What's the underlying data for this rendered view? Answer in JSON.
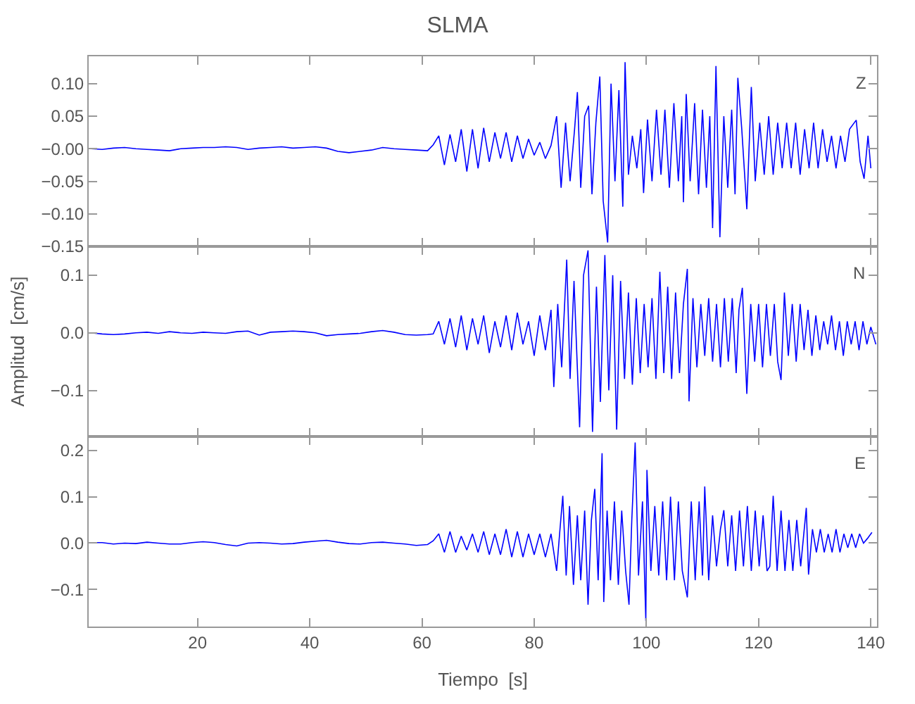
{
  "chart_data": [
    {
      "type": "line",
      "title": "SLMA",
      "color": "#0000ff",
      "annotations": [
        "Z"
      ],
      "tick_labels": "y",
      "xlim": [
        0.6,
        141.1
      ],
      "xticks": [
        20,
        40,
        60,
        80,
        100,
        120,
        140
      ],
      "ylim": [
        -0.15,
        0.142
      ],
      "yticks": [
        {
          "value": -0.15,
          "label": "−0.15"
        },
        {
          "value": -0.1,
          "label": "−0.10"
        },
        {
          "value": -0.05,
          "label": "−0.05"
        },
        {
          "value": 0,
          "label": "−0.00"
        },
        {
          "value": 0.05,
          "label": "0.05"
        },
        {
          "value": 0.1,
          "label": "0.10"
        }
      ],
      "x": [
        1,
        3,
        5,
        7,
        9,
        11,
        13,
        15,
        17,
        19,
        21,
        23,
        25,
        27,
        29,
        31,
        33,
        35,
        37,
        39,
        41,
        43,
        45,
        47,
        49,
        51,
        53,
        55,
        57,
        59,
        61,
        62,
        63,
        64,
        65,
        66,
        67,
        68,
        69,
        70,
        71,
        72,
        73,
        74,
        75,
        76,
        77,
        78,
        79,
        80,
        81,
        82,
        83,
        84,
        84.8,
        85.6,
        86.4,
        87.2,
        87.7,
        88.3,
        89.0,
        89.7,
        90.3,
        91.0,
        91.7,
        92.3,
        93.1,
        93.7,
        94.4,
        95.1,
        95.8,
        96.2,
        96.8,
        97.5,
        98.3,
        99.0,
        99.5,
        100.2,
        101,
        101.8,
        102.6,
        103.3,
        104.1,
        104.9,
        105.7,
        106.3,
        106.6,
        107.1,
        107.8,
        108.6,
        109.3,
        110,
        110.7,
        111.3,
        111.8,
        112.4,
        113.1,
        113.8,
        114.5,
        115.2,
        115.8,
        116.3,
        117,
        117.9,
        118.7,
        119.4,
        120.2,
        121,
        121.8,
        122.6,
        123.4,
        124.2,
        125,
        125.8,
        126.6,
        127.4,
        128.2,
        129,
        129.8,
        130.6,
        131.4,
        132.2,
        133,
        133.8,
        134.6,
        135.4,
        136.2,
        137.4,
        138.1,
        138.8,
        139.5,
        140
      ],
      "values": [
        0.0,
        -0.001,
        0.001,
        0.002,
        0.0,
        -0.001,
        -0.002,
        -0.003,
        0.0,
        0.001,
        0.002,
        0.002,
        0.003,
        0.002,
        -0.001,
        0.001,
        0.002,
        0.003,
        0.001,
        0.002,
        0.003,
        0.001,
        -0.004,
        -0.006,
        -0.004,
        -0.002,
        0.002,
        0.0,
        -0.001,
        -0.002,
        -0.003,
        0.006,
        0.02,
        -0.025,
        0.022,
        -0.02,
        0.03,
        -0.035,
        0.03,
        -0.03,
        0.032,
        -0.02,
        0.025,
        -0.015,
        0.025,
        -0.02,
        0.02,
        -0.015,
        0.015,
        -0.01,
        0.01,
        -0.015,
        0.005,
        0.05,
        -0.06,
        0.04,
        -0.05,
        0.03,
        0.087,
        -0.06,
        0.05,
        0.066,
        -0.07,
        0.04,
        0.111,
        -0.08,
        -0.144,
        0.1,
        -0.05,
        0.09,
        -0.089,
        0.133,
        -0.04,
        0.02,
        -0.03,
        0.03,
        -0.068,
        0.045,
        -0.05,
        0.06,
        -0.04,
        0.06,
        -0.06,
        0.07,
        -0.05,
        0.05,
        -0.082,
        0.084,
        -0.05,
        0.07,
        -0.07,
        0.06,
        -0.06,
        0.05,
        -0.122,
        0.127,
        -0.136,
        0.05,
        -0.06,
        0.06,
        -0.07,
        0.109,
        0.03,
        -0.093,
        0.095,
        -0.05,
        0.04,
        -0.04,
        0.05,
        -0.04,
        0.04,
        -0.03,
        0.04,
        -0.03,
        0.04,
        -0.04,
        0.03,
        -0.03,
        0.04,
        -0.03,
        0.03,
        -0.02,
        0.02,
        -0.03,
        0.02,
        -0.02,
        0.03,
        0.044,
        -0.02,
        -0.046,
        0.02,
        -0.03
      ]
    },
    {
      "type": "line",
      "ylabel": "Amplitud  [cm/s]",
      "color": "#0000ff",
      "annotations": [
        "N"
      ],
      "tick_labels": "y",
      "xlim": [
        0.6,
        141.1
      ],
      "xticks": [
        20,
        40,
        60,
        80,
        100,
        120,
        140
      ],
      "ylim": [
        -0.18,
        0.15
      ],
      "yticks": [
        {
          "value": -0.1,
          "label": "−0.1"
        },
        {
          "value": 0,
          "label": "0.0"
        },
        {
          "value": 0.1,
          "label": "0.1"
        }
      ],
      "x": [
        1,
        3,
        5,
        7,
        9,
        11,
        13,
        15,
        17,
        19,
        21,
        23,
        25,
        27,
        29,
        31,
        33,
        35,
        37,
        39,
        41,
        43,
        45,
        47,
        49,
        51,
        53,
        55,
        57,
        59,
        61,
        62,
        63,
        64,
        65,
        66,
        67,
        68,
        69,
        70,
        71,
        72,
        73,
        74,
        75,
        76,
        77,
        78,
        79,
        80,
        81,
        82,
        83,
        83.5,
        84.2,
        84.9,
        85.8,
        86.4,
        87.1,
        88.1,
        88.8,
        89.6,
        90.4,
        91.1,
        91.8,
        92.6,
        93.3,
        94.0,
        94.7,
        95.4,
        96.1,
        96.8,
        97.5,
        98.2,
        98.9,
        99.6,
        100.3,
        101,
        101.7,
        102.4,
        103.1,
        103.8,
        104.5,
        105.2,
        105.9,
        106.6,
        107.3,
        107.6,
        108.3,
        109,
        109.7,
        110.4,
        111.1,
        111.8,
        112.5,
        113.2,
        113.9,
        114.6,
        115.3,
        116,
        116.5,
        117.1,
        117.9,
        118.6,
        119.3,
        120,
        120.7,
        121.4,
        122.1,
        122.8,
        123.4,
        124,
        124.6,
        125.3,
        126,
        126.7,
        127.4,
        128.1,
        128.8,
        129.5,
        130.2,
        130.9,
        131.6,
        132.3,
        133,
        133.7,
        134.4,
        135.1,
        135.8,
        136.5,
        137.2,
        137.9,
        138.6,
        139.3,
        140,
        140.9
      ],
      "values": [
        0,
        -0.002,
        -0.003,
        -0.002,
        0,
        0.001,
        -0.001,
        0.002,
        0,
        -0.001,
        0.001,
        0,
        -0.001,
        0.002,
        0.003,
        -0.004,
        0.001,
        0.002,
        0.003,
        0.002,
        0,
        -0.005,
        -0.003,
        -0.002,
        -0.001,
        0.002,
        0.004,
        0.001,
        -0.003,
        -0.004,
        -0.003,
        -0.002,
        0.02,
        -0.02,
        0.025,
        -0.025,
        0.03,
        -0.03,
        0.025,
        -0.02,
        0.03,
        -0.035,
        0.02,
        -0.025,
        0.03,
        -0.03,
        0.035,
        -0.02,
        0.02,
        -0.04,
        0.03,
        -0.03,
        0.04,
        -0.094,
        0.05,
        -0.06,
        0.127,
        -0.08,
        0.09,
        -0.164,
        0.1,
        0.143,
        -0.172,
        0.08,
        -0.12,
        0.135,
        -0.1,
        0.1,
        -0.168,
        0.09,
        -0.08,
        0.07,
        -0.09,
        0.06,
        -0.07,
        0.05,
        -0.06,
        0.06,
        -0.08,
        0.106,
        -0.07,
        0.08,
        -0.08,
        0.07,
        -0.07,
        0.05,
        0.111,
        -0.119,
        0.06,
        -0.06,
        0.05,
        -0.04,
        0.06,
        -0.05,
        0.05,
        -0.06,
        0.06,
        -0.05,
        0.06,
        -0.07,
        0.04,
        0.078,
        -0.106,
        0.05,
        -0.05,
        0.05,
        -0.06,
        0.05,
        -0.04,
        0.05,
        -0.05,
        -0.082,
        0.07,
        -0.04,
        0.05,
        -0.05,
        0.05,
        -0.03,
        0.04,
        -0.04,
        0.03,
        -0.03,
        0.02,
        -0.02,
        0.03,
        -0.03,
        0.02,
        -0.04,
        0.02,
        -0.02,
        0.02,
        -0.03,
        0.02,
        -0.02,
        0.01,
        -0.02
      ]
    },
    {
      "type": "line",
      "xlabel": "Tiempo  [s]",
      "color": "#0000ff",
      "annotations": [
        "E"
      ],
      "xlim": [
        0.6,
        141.1
      ],
      "xticks": [
        20,
        40,
        60,
        80,
        100,
        120,
        140
      ],
      "ylim": [
        -0.18,
        0.23
      ],
      "yticks": [
        {
          "value": -0.1,
          "label": "−0.1"
        },
        {
          "value": 0,
          "label": "0.0"
        },
        {
          "value": 0.1,
          "label": "0.1"
        },
        {
          "value": 0.2,
          "label": "0.2"
        }
      ],
      "x": [
        1,
        3,
        5,
        7,
        9,
        11,
        13,
        15,
        17,
        19,
        21,
        23,
        25,
        27,
        29,
        31,
        33,
        35,
        37,
        39,
        41,
        43,
        45,
        47,
        49,
        51,
        53,
        55,
        57,
        59,
        61,
        62,
        63,
        64,
        65,
        66,
        67,
        68,
        69,
        70,
        71,
        72,
        73,
        74,
        75,
        76,
        77,
        78,
        79,
        80,
        81,
        82,
        83,
        84,
        84.6,
        85.1,
        85.7,
        86.3,
        87,
        87.7,
        88.3,
        89,
        89.6,
        90.2,
        90.8,
        91.4,
        92.1,
        92.4,
        93,
        93.6,
        94.3,
        95,
        95.6,
        96.3,
        96.9,
        97.4,
        98,
        98.6,
        99.3,
        99.9,
        100.1,
        100.8,
        101.5,
        102.2,
        102.9,
        103.6,
        104.3,
        105,
        105.7,
        106.4,
        107.3,
        108,
        108.7,
        109.4,
        110,
        110.4,
        111.1,
        111.8,
        112.5,
        113.2,
        113.8,
        114.5,
        115.2,
        115.9,
        116.6,
        117.3,
        118,
        118.7,
        119.4,
        120.1,
        120.8,
        121.5,
        122,
        122.6,
        123.3,
        124,
        124.7,
        125.4,
        126.1,
        126.8,
        127.5,
        128.5,
        128.9,
        129.6,
        130.3,
        131,
        131.7,
        132.4,
        133.1,
        133.8,
        134.5,
        135.2,
        135.9,
        136.6,
        137.3,
        138,
        138.7,
        139.4,
        140.2
      ],
      "values": [
        0.001,
        0.001,
        -0.002,
        0,
        -0.001,
        0.002,
        0,
        -0.002,
        -0.002,
        0.001,
        0.003,
        0.001,
        -0.003,
        -0.006,
        0,
        0.001,
        0,
        -0.002,
        -0.001,
        0.002,
        0.004,
        0.006,
        0.002,
        -0.001,
        -0.002,
        0.001,
        0.002,
        0,
        -0.002,
        -0.005,
        -0.003,
        0.005,
        0.02,
        -0.02,
        0.025,
        -0.02,
        0.015,
        -0.015,
        0.02,
        -0.02,
        0.025,
        -0.025,
        0.02,
        -0.025,
        0.03,
        -0.03,
        0.025,
        -0.03,
        0.02,
        -0.025,
        0.02,
        -0.03,
        0.02,
        -0.06,
        0.03,
        0.102,
        -0.07,
        0.08,
        -0.09,
        0.06,
        -0.08,
        0.07,
        -0.133,
        0.05,
        0.117,
        -0.08,
        0.194,
        -0.127,
        0.07,
        -0.08,
        0.09,
        -0.09,
        0.07,
        -0.06,
        -0.133,
        0.05,
        0.217,
        -0.07,
        0.09,
        -0.168,
        0.158,
        -0.06,
        0.08,
        -0.07,
        0.09,
        -0.08,
        0.1,
        -0.08,
        0.09,
        -0.06,
        -0.117,
        0.09,
        -0.08,
        0.09,
        -0.07,
        0.122,
        -0.08,
        0.06,
        -0.05,
        0.03,
        0.071,
        -0.05,
        0.06,
        -0.06,
        0.07,
        -0.05,
        0.08,
        -0.06,
        0.07,
        -0.05,
        0.06,
        -0.06,
        -0.05,
        0.102,
        -0.06,
        0.07,
        -0.06,
        0.05,
        -0.06,
        0.05,
        -0.05,
        0.076,
        -0.068,
        0.03,
        -0.02,
        0.03,
        -0.02,
        0.02,
        -0.02,
        0.03,
        -0.02,
        0.02,
        -0.01,
        0.02,
        -0.01,
        0.02,
        0,
        0.01,
        0.023
      ]
    }
  ]
}
